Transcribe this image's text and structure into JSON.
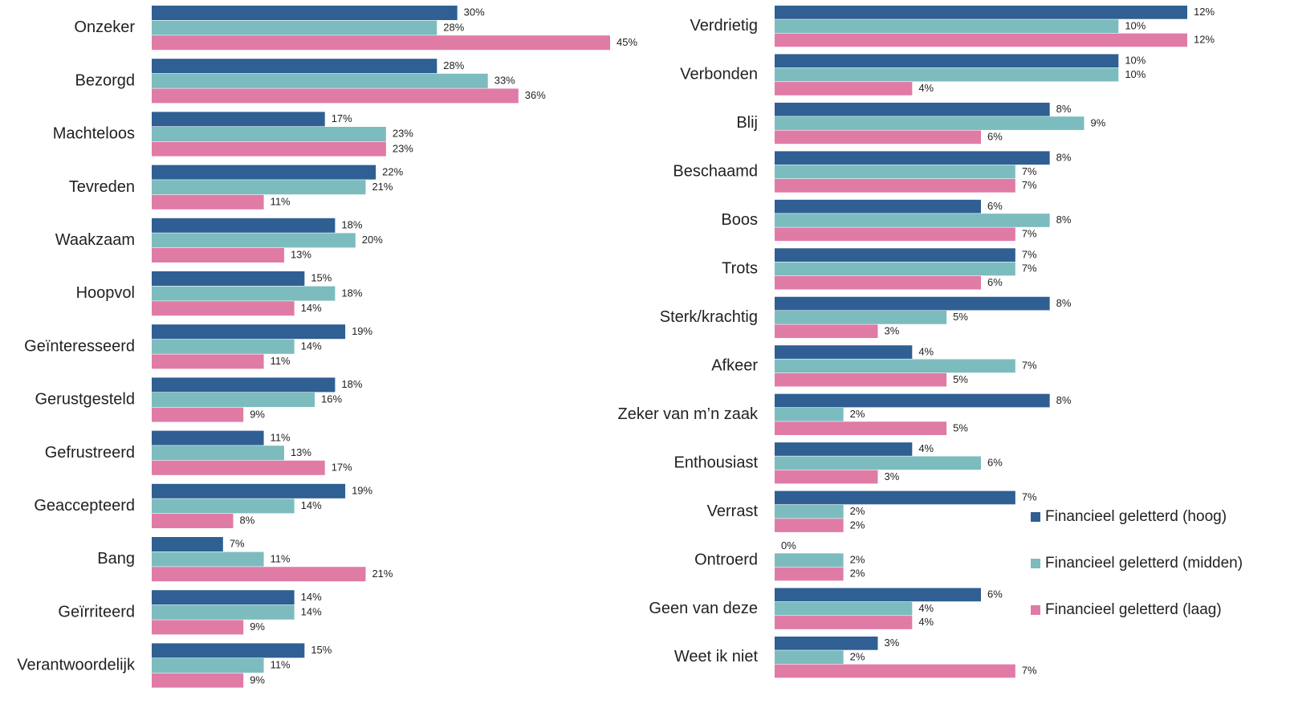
{
  "chart_data": [
    {
      "type": "hbar",
      "categories": [
        "Onzeker",
        "Bezorgd",
        "Machteloos",
        "Tevreden",
        "Waakzaam",
        "Hoopvol",
        "Geïnteresseerd",
        "Gerustgesteld",
        "Gefrustreerd",
        "Geaccepteerd",
        "Bang",
        "Geïrriteerd",
        "Verantwoordelijk"
      ],
      "xlim": [
        0,
        45
      ],
      "series": [
        {
          "color": "#2f5f93",
          "values": [
            30,
            28,
            17,
            22,
            18,
            15,
            19,
            18,
            11,
            19,
            7,
            14,
            15
          ],
          "value_labels": [
            "30%",
            "28%",
            "17%",
            "22%",
            "18%",
            "15%",
            "19%",
            "18%",
            "11%",
            "19%",
            "7%",
            "14%",
            "15%"
          ]
        },
        {
          "color": "#7cbcbf",
          "values": [
            28,
            33,
            23,
            21,
            20,
            18,
            14,
            16,
            13,
            14,
            11,
            14,
            11
          ],
          "value_labels": [
            "28%",
            "33%",
            "23%",
            "21%",
            "20%",
            "18%",
            "14%",
            "16%",
            "13%",
            "14%",
            "11%",
            "14%",
            "11%"
          ]
        },
        {
          "color": "#e07ba6",
          "values": [
            45,
            36,
            23,
            11,
            13,
            14,
            11,
            9,
            17,
            8,
            21,
            9,
            9
          ],
          "value_labels": [
            "45%",
            "36%",
            "23%",
            "11%",
            "13%",
            "14%",
            "11%",
            "9%",
            "17%",
            "8%",
            "21%",
            "9%",
            "9%"
          ]
        }
      ]
    },
    {
      "type": "hbar",
      "categories": [
        "Verdrietig",
        "Verbonden",
        "Blij",
        "Beschaamd",
        "Boos",
        "Trots",
        "Sterk/krachtig",
        "Afkeer",
        "Zeker van m’n zaak",
        "Enthousiast",
        "Verrast",
        "Ontroerd",
        "Geen van deze",
        "Weet ik niet"
      ],
      "xlim": [
        0,
        12
      ],
      "legend": "right",
      "series": [
        {
          "name": "Financieel geletterd (hoog)",
          "color": "#2f5f93",
          "values": [
            12,
            10,
            8,
            8,
            6,
            7,
            8,
            4,
            8,
            4,
            7,
            0,
            6,
            3
          ],
          "value_labels": [
            "12%",
            "10%",
            "8%",
            "8%",
            "6%",
            "7%",
            "8%",
            "4%",
            "8%",
            "4%",
            "7%",
            "0%",
            "6%",
            "3%"
          ]
        },
        {
          "name": "Financieel geletterd (midden)",
          "color": "#7cbcbf",
          "values": [
            10,
            10,
            9,
            7,
            8,
            7,
            5,
            7,
            2,
            6,
            2,
            2,
            4,
            2
          ],
          "value_labels": [
            "10%",
            "10%",
            "9%",
            "7%",
            "8%",
            "7%",
            "5%",
            "7%",
            "2%",
            "6%",
            "2%",
            "2%",
            "4%",
            "2%"
          ]
        },
        {
          "name": "Financieel geletterd (laag)",
          "color": "#e07ba6",
          "values": [
            12,
            4,
            6,
            7,
            7,
            6,
            3,
            5,
            5,
            3,
            2,
            2,
            4,
            7
          ],
          "value_labels": [
            "12%",
            "4%",
            "6%",
            "7%",
            "7%",
            "6%",
            "3%",
            "5%",
            "5%",
            "3%",
            "2%",
            "2%",
            "4%",
            "7%"
          ]
        }
      ]
    }
  ]
}
